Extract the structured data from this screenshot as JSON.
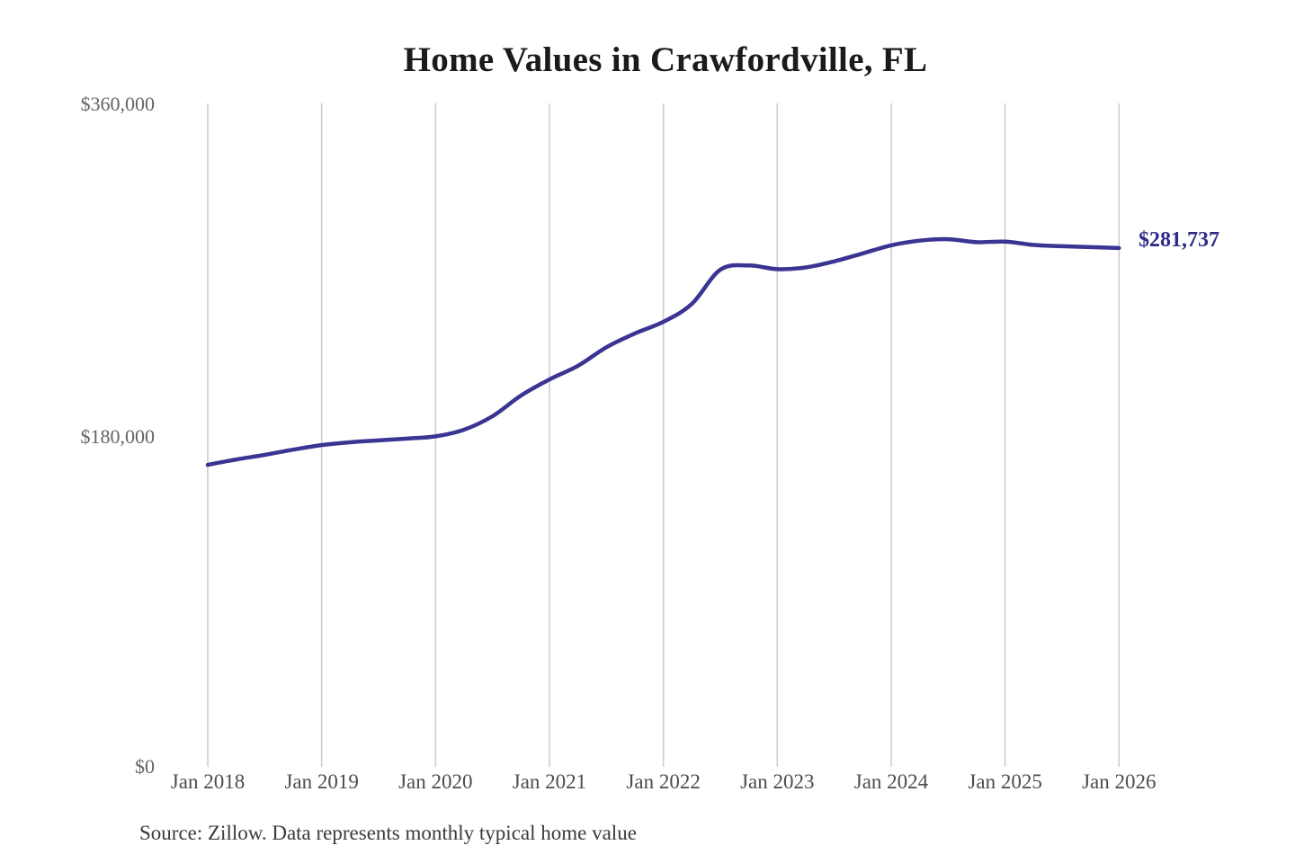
{
  "title": "Home Values in Crawfordville, FL",
  "source_note": "Source: Zillow. Data represents monthly typical home value",
  "end_label": "$281,737",
  "colors": {
    "line": "#3a3492",
    "end_label": "#2e2b87",
    "gridline": "#cbcbcb",
    "title": "#1b1b1b",
    "y_tick_text": "#636363",
    "x_tick_text": "#4c4c4c",
    "source_text": "#3a3a3a",
    "background": "#ffffff"
  },
  "chart_data": {
    "type": "line",
    "title": "Home Values in Crawfordville, FL",
    "series_name": "Monthly typical home value",
    "x": [
      "Jan 2018",
      "Apr 2018",
      "Jul 2018",
      "Oct 2018",
      "Jan 2019",
      "Apr 2019",
      "Jul 2019",
      "Oct 2019",
      "Jan 2020",
      "Apr 2020",
      "Jul 2020",
      "Oct 2020",
      "Jan 2021",
      "Apr 2021",
      "Jul 2021",
      "Oct 2021",
      "Jan 2022",
      "Apr 2022",
      "Jul 2022",
      "Oct 2022",
      "Jan 2023",
      "Apr 2023",
      "Jul 2023",
      "Oct 2023",
      "Jan 2024",
      "Apr 2024",
      "Jul 2024",
      "Oct 2024",
      "Jan 2025",
      "Apr 2025",
      "Jul 2025",
      "Oct 2025",
      "Jan 2026"
    ],
    "values": [
      164400,
      167300,
      169800,
      172600,
      175100,
      176600,
      177600,
      178600,
      179800,
      183400,
      190700,
      201900,
      210600,
      218000,
      228000,
      235500,
      241800,
      251500,
      270000,
      272300,
      270300,
      271200,
      274500,
      278800,
      283200,
      285700,
      286500,
      284900,
      285200,
      283400,
      282700,
      282200,
      281737
    ],
    "x_tick_labels": [
      "Jan 2018",
      "Jan 2019",
      "Jan 2020",
      "Jan 2021",
      "Jan 2022",
      "Jan 2023",
      "Jan 2024",
      "Jan 2025",
      "Jan 2026"
    ],
    "y_ticks": [
      {
        "label": "$0",
        "value": 0
      },
      {
        "label": "$180,000",
        "value": 180000
      },
      {
        "label": "$360,000",
        "value": 360000
      }
    ],
    "ylim": [
      0,
      360000
    ],
    "grid": "vertical-only",
    "legend": "none",
    "end_value": 281737,
    "end_label": "$281,737"
  }
}
